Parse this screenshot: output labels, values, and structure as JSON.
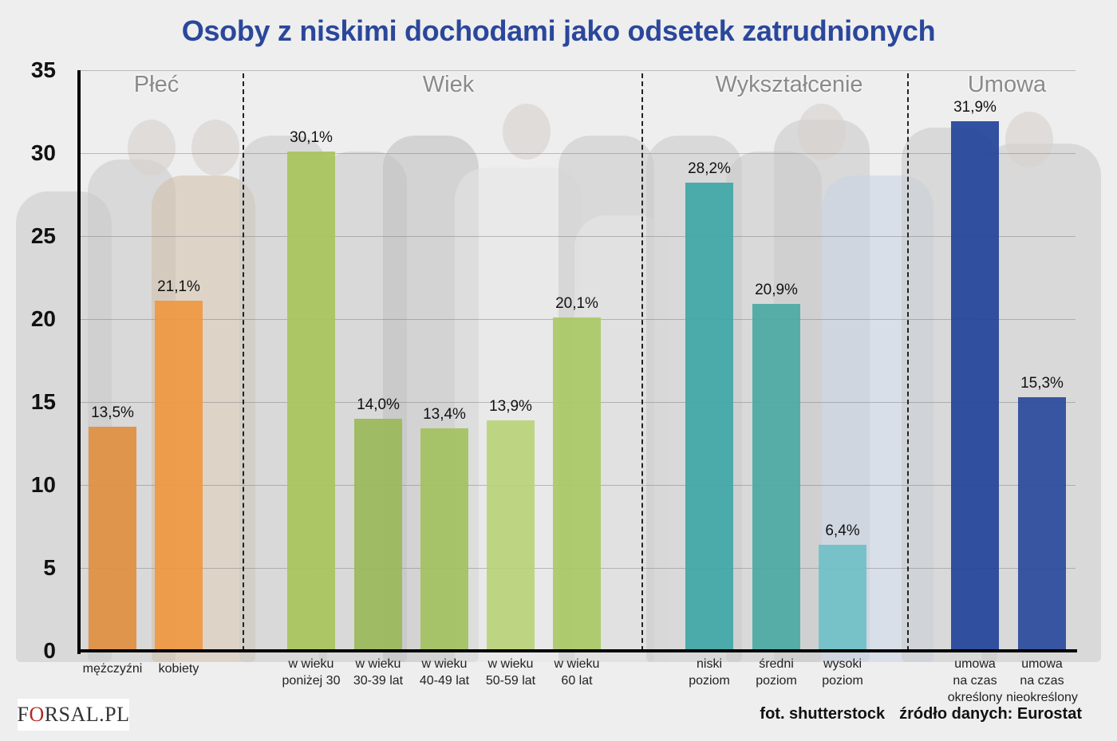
{
  "title": "Osoby z niskimi dochodami jako odsetek zatrudnionych",
  "y_ticks": [
    "35",
    "30",
    "25",
    "20",
    "15",
    "10",
    "5",
    "0"
  ],
  "groups": [
    {
      "label": "Płeć"
    },
    {
      "label": "Wiek"
    },
    {
      "label": "Wykształcenie"
    },
    {
      "label": "Umowa"
    }
  ],
  "bars": [
    {
      "label": "mężczyźni",
      "value_label": "13,5%",
      "value": 13.5,
      "color": "#e08f3f"
    },
    {
      "label": "kobiety",
      "value_label": "21,1%",
      "value": 21.1,
      "color": "#ee9840"
    },
    {
      "label": "w wieku\nponiżej 30",
      "value_label": "30,1%",
      "value": 30.1,
      "color": "#a8c45c"
    },
    {
      "label": "w wieku\n30-39 lat",
      "value_label": "14,0%",
      "value": 14.0,
      "color": "#9ab85a"
    },
    {
      "label": "w wieku\n40-49 lat",
      "value_label": "13,4%",
      "value": 13.4,
      "color": "#a3c15f"
    },
    {
      "label": "w wieku\n50-59 lat",
      "value_label": "13,9%",
      "value": 13.9,
      "color": "#b8d27a"
    },
    {
      "label": "w wieku\n60 lat",
      "value_label": "20,1%",
      "value": 20.1,
      "color": "#a9c966"
    },
    {
      "label": "niski\npoziom",
      "value_label": "28,2%",
      "value": 28.2,
      "color": "#3fa6a6"
    },
    {
      "label": "średni\npoziom",
      "value_label": "20,9%",
      "value": 20.9,
      "color": "#4ba9a4"
    },
    {
      "label": "wysoki\npoziom",
      "value_label": "6,4%",
      "value": 6.4,
      "color": "#6fc0c6"
    },
    {
      "label": "umowa\nna czas\nokreślony",
      "value_label": "31,9%",
      "value": 31.9,
      "color": "#22439a"
    },
    {
      "label": "umowa\nna czas\nnieokreślony",
      "value_label": "15,3%",
      "value": 15.3,
      "color": "#2a4a9c"
    }
  ],
  "logo": {
    "pre": "F",
    "o": "O",
    "post": "RSAL.PL"
  },
  "credits": {
    "photo": "fot. shutterstock",
    "source": "źródło danych: Eurostat"
  },
  "chart_data": {
    "type": "bar",
    "title": "Osoby z niskimi dochodami jako odsetek zatrudnionych",
    "xlabel": "",
    "ylabel": "",
    "ylim": [
      0,
      35
    ],
    "yticks": [
      0,
      5,
      10,
      15,
      20,
      25,
      30,
      35
    ],
    "grid": true,
    "categories": [
      "mężczyźni",
      "kobiety",
      "w wieku poniżej 30",
      "w wieku 30-39 lat",
      "w wieku 40-49 lat",
      "w wieku 50-59 lat",
      "w wieku 60 lat",
      "niski poziom",
      "średni poziom",
      "wysoki poziom",
      "umowa na czas określony",
      "umowa na czas nieokreślony"
    ],
    "values": [
      13.5,
      21.1,
      30.1,
      14.0,
      13.4,
      13.9,
      20.1,
      28.2,
      20.9,
      6.4,
      31.9,
      15.3
    ],
    "data_labels": [
      "13,5%",
      "21,1%",
      "30,1%",
      "14,0%",
      "13,4%",
      "13,9%",
      "20,1%",
      "28,2%",
      "20,9%",
      "6,4%",
      "31,9%",
      "15,3%"
    ],
    "category_groups": [
      {
        "name": "Płeć",
        "categories": [
          "mężczyźni",
          "kobiety"
        ]
      },
      {
        "name": "Wiek",
        "categories": [
          "w wieku poniżej 30",
          "w wieku 30-39 lat",
          "w wieku 40-49 lat",
          "w wieku 50-59 lat",
          "w wieku 60 lat"
        ]
      },
      {
        "name": "Wykształcenie",
        "categories": [
          "niski poziom",
          "średni poziom",
          "wysoki poziom"
        ]
      },
      {
        "name": "Umowa",
        "categories": [
          "umowa na czas określony",
          "umowa na czas nieokreślony"
        ]
      }
    ],
    "annotations": [
      "fot. shutterstock",
      "źródło danych: Eurostat"
    ]
  }
}
